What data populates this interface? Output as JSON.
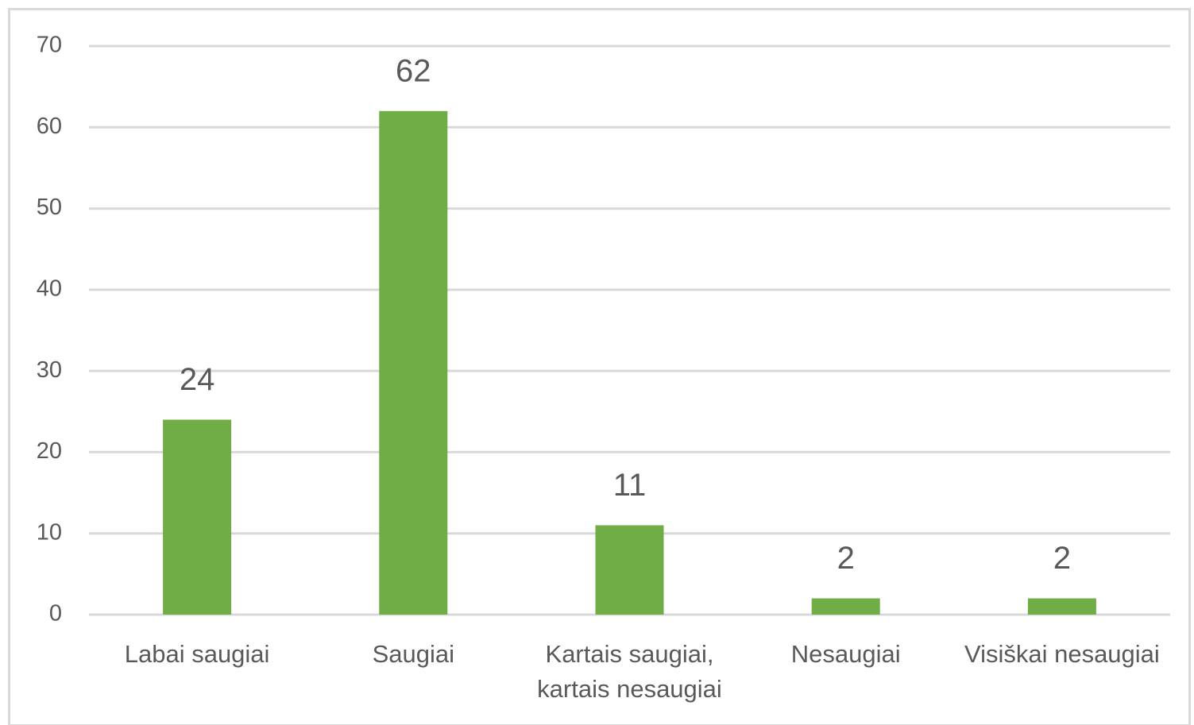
{
  "chart_data": {
    "type": "bar",
    "categories": [
      "Labai saugiai",
      "Saugiai",
      "Kartais saugiai, kartais nesaugiai",
      "Nesaugiai",
      "Visiškai nesaugiai"
    ],
    "values": [
      24,
      62,
      11,
      2,
      2
    ],
    "color": "#70ad47",
    "ylim": [
      0,
      70
    ],
    "yticks": [
      0,
      10,
      20,
      30,
      40,
      50,
      60,
      70
    ],
    "grid": true
  }
}
